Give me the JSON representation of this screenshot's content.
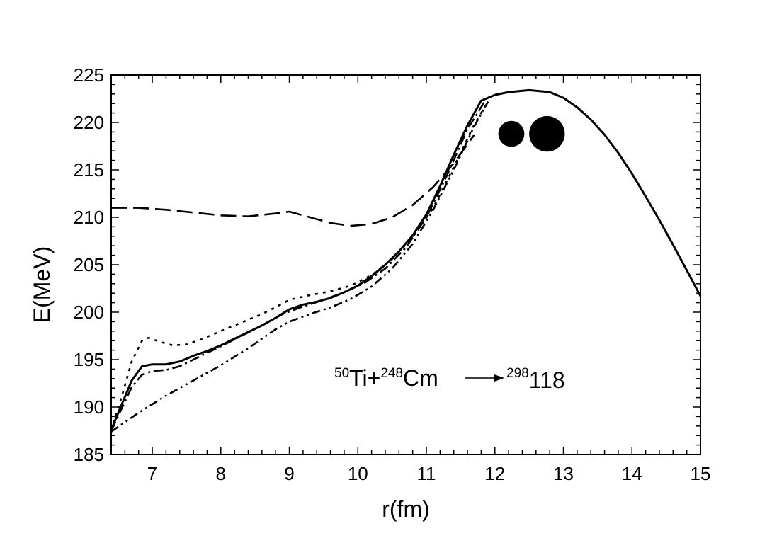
{
  "chart_data": {
    "type": "line",
    "title": "",
    "xlabel": "r(fm)",
    "ylabel": "E(MeV)",
    "xlim": [
      6.4,
      15
    ],
    "ylim": [
      185,
      225
    ],
    "xticks": [
      7,
      8,
      9,
      10,
      11,
      12,
      13,
      14,
      15
    ],
    "yticks": [
      185,
      190,
      195,
      200,
      205,
      210,
      215,
      220,
      225
    ],
    "legend": "none",
    "series": [
      {
        "style": "solid",
        "x": [
          6.4,
          6.55,
          6.7,
          6.85,
          7.0,
          7.2,
          7.4,
          7.6,
          7.8,
          8.0,
          8.2,
          8.4,
          8.6,
          8.8,
          9.0,
          9.2,
          9.4,
          9.6,
          9.8,
          10.0,
          10.2,
          10.4,
          10.6,
          10.8,
          11.0,
          11.2,
          11.4,
          11.6,
          11.8,
          12.0,
          12.2,
          12.5,
          12.8,
          13.0,
          13.2,
          13.4,
          13.6,
          13.8,
          14.0,
          14.2,
          14.4,
          14.6,
          14.8,
          15.0
        ],
        "y": [
          187.6,
          190.2,
          192.8,
          194.3,
          194.5,
          194.5,
          194.8,
          195.4,
          195.9,
          196.5,
          197.2,
          197.9,
          198.6,
          199.4,
          200.3,
          200.8,
          201.1,
          201.5,
          202.1,
          202.8,
          203.8,
          205.0,
          206.4,
          208.1,
          210.3,
          213.3,
          216.6,
          219.7,
          222.3,
          222.9,
          223.2,
          223.4,
          223.2,
          222.6,
          221.6,
          220.3,
          218.7,
          216.8,
          214.6,
          212.2,
          209.7,
          207.1,
          204.4,
          201.7
        ]
      },
      {
        "style": "dashed",
        "x": [
          6.4,
          6.8,
          7.2,
          7.6,
          8.0,
          8.4,
          8.8,
          9.0,
          9.3,
          9.6,
          9.9,
          10.2,
          10.5,
          10.8,
          11.1,
          11.4,
          11.7
        ],
        "y": [
          211.0,
          211.0,
          210.8,
          210.5,
          210.2,
          210.1,
          210.4,
          210.6,
          210.0,
          209.4,
          209.1,
          209.3,
          210.0,
          211.3,
          213.2,
          215.7,
          218.7
        ]
      },
      {
        "style": "dotted",
        "x": [
          6.4,
          6.55,
          6.7,
          6.85,
          6.95,
          7.1,
          7.3,
          7.5,
          7.7,
          8.0,
          8.3,
          8.6,
          8.9,
          9.0,
          9.3,
          9.6,
          9.9,
          10.2,
          10.5,
          10.8,
          11.1,
          11.4,
          11.7,
          11.9
        ],
        "y": [
          187.5,
          191.0,
          194.8,
          197.0,
          197.3,
          196.9,
          196.5,
          196.6,
          197.1,
          198.0,
          198.9,
          199.8,
          200.9,
          201.3,
          201.8,
          202.2,
          202.8,
          203.9,
          205.6,
          207.9,
          211.0,
          215.3,
          219.8,
          222.2
        ]
      },
      {
        "style": "dash-dot",
        "x": [
          6.4,
          6.55,
          6.7,
          6.85,
          7.0,
          7.2,
          7.4,
          7.6,
          7.8,
          8.0,
          8.3,
          8.6,
          8.9,
          9.2,
          9.5,
          9.8,
          10.1,
          10.4,
          10.7,
          11.0,
          11.3,
          11.6,
          11.85
        ],
        "y": [
          187.5,
          189.8,
          192.1,
          193.4,
          193.8,
          193.9,
          194.3,
          195.0,
          195.7,
          196.4,
          197.5,
          198.6,
          199.8,
          200.6,
          201.3,
          202.1,
          203.1,
          204.6,
          206.8,
          210.0,
          214.4,
          219.3,
          222.2
        ]
      },
      {
        "style": "dash-dot-dot",
        "x": [
          6.4,
          6.8,
          7.2,
          7.6,
          8.0,
          8.4,
          8.8,
          9.0,
          9.3,
          9.6,
          9.9,
          10.2,
          10.5,
          10.8,
          11.1,
          11.4,
          11.7,
          11.9
        ],
        "y": [
          187.4,
          189.4,
          191.2,
          192.8,
          194.4,
          196.2,
          198.2,
          199.0,
          199.8,
          200.5,
          201.4,
          202.7,
          204.6,
          207.2,
          210.8,
          215.0,
          219.6,
          222.2
        ]
      }
    ],
    "annotation": {
      "projectile_mass": "50",
      "projectile": "Ti+",
      "target_mass": "248",
      "target": "Cm",
      "product_mass": "298",
      "product": "118"
    },
    "nuclei_icon": {
      "small_center": [
        12.24,
        218.8
      ],
      "large_center": [
        12.76,
        218.8
      ],
      "small_radius_fm": 0.19,
      "large_radius_fm": 0.26
    }
  }
}
